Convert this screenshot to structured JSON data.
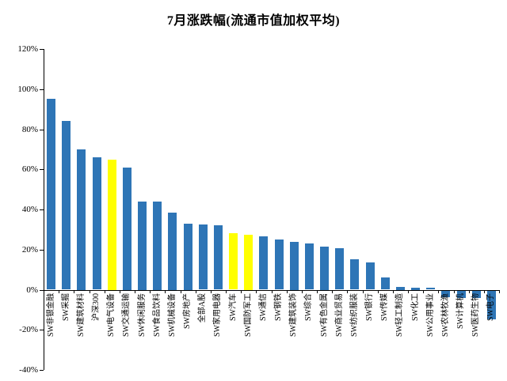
{
  "title": "7月涨跌幅(流通市值加权平均)",
  "chart_data": {
    "type": "bar",
    "title": "7月涨跌幅(流通市值加权平均)",
    "categories": [
      "SW非银金融",
      "SW采掘",
      "SW建筑材料",
      "沪深300",
      "SW电气设备",
      "SW交通运输",
      "SW休闲服务",
      "SW食品饮料",
      "SW机械设备",
      "SW房地产",
      "全部A股",
      "SW家用电器",
      "SW汽车",
      "SW国防军工",
      "SW通信",
      "SW钢铁",
      "SW建筑装饰",
      "SW综合",
      "SW有色金属",
      "SW商业贸易",
      "SW纺织服装",
      "SW银行",
      "SW传媒",
      "SW轻工制造",
      "SW化工",
      "SW公用事业",
      "SW农林牧渔",
      "SW计算机",
      "SW医药生物",
      "SW电子"
    ],
    "values": [
      95,
      84,
      70,
      66,
      65,
      61,
      44,
      44,
      38.5,
      33,
      32.5,
      32,
      28,
      27.5,
      26.5,
      25,
      24,
      23,
      21.5,
      20.5,
      15,
      13.5,
      6,
      1.5,
      1,
      0.8,
      -3.3,
      -3.5,
      -3.7,
      -14
    ],
    "highlighted_categories": [
      "SW电气设备",
      "SW汽车",
      "SW国防军工"
    ],
    "bar_color": "#2E75B6",
    "highlight_color": "#FFFF00",
    "xlabel": "",
    "ylabel": "",
    "ylim": [
      -40,
      120
    ],
    "yticks": [
      120,
      100,
      80,
      60,
      40,
      20,
      0,
      -20,
      -40
    ],
    "ytick_labels": [
      "120%",
      "100%",
      "80%",
      "60%",
      "40%",
      "20%",
      "0%",
      "-20%",
      "-40%"
    ],
    "grid": false,
    "legend": "none"
  }
}
